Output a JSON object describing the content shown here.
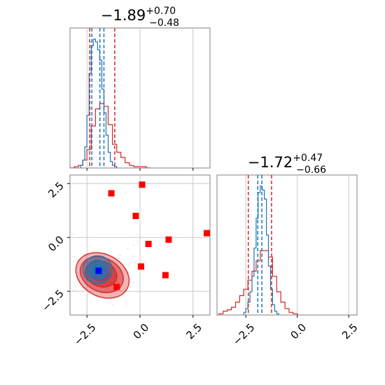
{
  "chart_data": [
    {
      "panel": "marginal-x",
      "type": "histogram",
      "title": {
        "main": "−1.89",
        "upper": "+0.70",
        "lower": "−0.48"
      },
      "xlim": [
        -3.3,
        3.3
      ],
      "quantiles": {
        "red": [
          -2.37,
          -1.19
        ],
        "blue": [
          -2.27,
          -1.89,
          -1.7
        ]
      },
      "series": [
        {
          "color": "#d62728",
          "bins": [
            -3.3,
            -3.1,
            -2.9,
            -2.7,
            -2.5,
            -2.3,
            -2.1,
            -1.9,
            -1.7,
            -1.5,
            -1.3,
            -1.1,
            -0.9,
            -0.7,
            -0.5,
            -0.3,
            -0.1,
            0.1,
            0.3,
            0.5
          ],
          "heights": [
            0,
            0.01,
            0.02,
            0.06,
            0.14,
            0.32,
            0.45,
            0.49,
            0.47,
            0.33,
            0.18,
            0.12,
            0.08,
            0.04,
            0.02,
            0.01,
            0.01,
            0.01,
            0
          ]
        },
        {
          "color": "#1f77b4",
          "bins": [
            -2.8,
            -2.7,
            -2.6,
            -2.5,
            -2.4,
            -2.3,
            -2.2,
            -2.1,
            -2.0,
            -1.9,
            -1.8,
            -1.7,
            -1.6,
            -1.5,
            -1.4,
            -1.3,
            -1.2,
            -1.1
          ],
          "heights": [
            0.02,
            0.06,
            0.16,
            0.4,
            0.72,
            0.93,
            0.98,
            0.96,
            0.9,
            0.82,
            0.6,
            0.42,
            0.25,
            0.12,
            0.05,
            0.02,
            0.01
          ]
        }
      ]
    },
    {
      "panel": "joint",
      "type": "scatter",
      "xlim": [
        -3.3,
        3.3
      ],
      "ylim": [
        -3.6,
        2.9
      ],
      "xticks": [
        "−2.5",
        "0.0",
        "2.5"
      ],
      "yticks": [
        "−2.5",
        "0.0",
        "2.5"
      ],
      "xtick_values": [
        -2.5,
        0.0,
        2.5
      ],
      "ytick_values": [
        -2.5,
        0.0,
        2.5
      ],
      "red_squares": [
        {
          "x": -1.35,
          "y": 2.05
        },
        {
          "x": 0.1,
          "y": 2.45
        },
        {
          "x": -0.2,
          "y": 1.0
        },
        {
          "x": 3.15,
          "y": 0.2
        },
        {
          "x": 1.35,
          "y": -0.1
        },
        {
          "x": 0.4,
          "y": -0.3
        },
        {
          "x": 0.05,
          "y": -1.35
        },
        {
          "x": 1.2,
          "y": -1.75
        },
        {
          "x": -1.1,
          "y": -2.3
        }
      ],
      "blue_square": {
        "x": -1.95,
        "y": -1.55
      },
      "red_density_center": {
        "x": -1.9,
        "y": -1.6
      },
      "blue_density_center": {
        "x": -2.0,
        "y": -1.5
      }
    },
    {
      "panel": "marginal-y",
      "type": "histogram",
      "title": {
        "main": "−1.72",
        "upper": "+0.47",
        "lower": "−0.66"
      },
      "xlim": [
        -3.9,
        2.9
      ],
      "xticks": [
        "−2.5",
        "0.0",
        "2.5"
      ],
      "xtick_values": [
        -2.5,
        0.0,
        2.5
      ],
      "quantiles": {
        "red": [
          -2.38,
          -1.25
        ],
        "blue": [
          -1.92,
          -1.72
        ]
      },
      "series": [
        {
          "color": "#d62728",
          "bins": [
            -3.8,
            -3.6,
            -3.4,
            -3.2,
            -3.0,
            -2.8,
            -2.6,
            -2.4,
            -2.2,
            -2.0,
            -1.8,
            -1.6,
            -1.4,
            -1.2,
            -1.0,
            -0.8,
            -0.6,
            -0.4,
            -0.2,
            0.0
          ],
          "heights": [
            0.01,
            0.03,
            0.04,
            0.06,
            0.1,
            0.15,
            0.2,
            0.27,
            0.34,
            0.42,
            0.5,
            0.5,
            0.45,
            0.3,
            0.18,
            0.1,
            0.05,
            0.02,
            0.01
          ]
        },
        {
          "color": "#1f77b4",
          "bins": [
            -2.6,
            -2.5,
            -2.4,
            -2.3,
            -2.2,
            -2.1,
            -2.0,
            -1.9,
            -1.8,
            -1.7,
            -1.6,
            -1.5,
            -1.4,
            -1.3,
            -1.2,
            -1.1,
            -1.0,
            -0.9
          ],
          "heights": [
            0.02,
            0.05,
            0.1,
            0.18,
            0.3,
            0.52,
            0.75,
            0.95,
            1.0,
            0.97,
            0.9,
            0.62,
            0.38,
            0.2,
            0.08,
            0.03,
            0.01
          ]
        }
      ]
    }
  ]
}
